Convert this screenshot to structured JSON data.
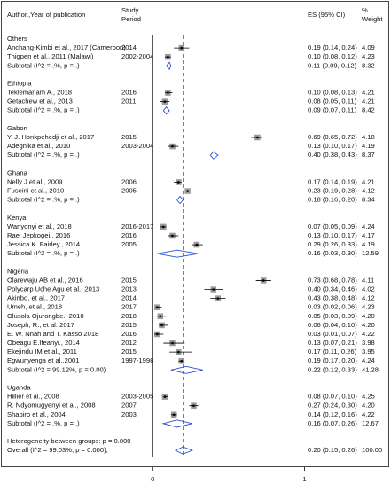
{
  "chart_data": {
    "type": "forest",
    "header": {
      "author": "Author.,Year of publication",
      "period_top": "Study",
      "period_bottom": "Period",
      "es": "ES (95% CI)",
      "weight_top": "%",
      "weight_bottom": "Weight"
    },
    "groups": [
      {
        "name": "Others",
        "studies": [
          {
            "author": "Anchang-Kimbi et al., 2017 (Cameroon)",
            "period": "2014",
            "es": 0.19,
            "lo": 0.14,
            "hi": 0.24,
            "es_label": "0.19 (0.14, 0.24)",
            "weight": 4.09,
            "weight_label": "4.09"
          },
          {
            "author": "Thigpen et al., 2011 (Malawi)",
            "period": "2002-2004",
            "es": 0.1,
            "lo": 0.08,
            "hi": 0.12,
            "es_label": "0.10 (0.08, 0.12)",
            "weight": 4.23,
            "weight_label": "4.23"
          }
        ],
        "subtotal": {
          "label": "Subtotal  (I^2 = .%, p = .)",
          "es": 0.11,
          "lo": 0.09,
          "hi": 0.12,
          "es_label": "0.11 (0.09, 0.12)",
          "weight": 8.32,
          "weight_label": "8.32"
        }
      },
      {
        "name": "Ethiopia",
        "studies": [
          {
            "author": "Teklemariam A., 2018",
            "period": "2016",
            "es": 0.1,
            "lo": 0.08,
            "hi": 0.13,
            "es_label": "0.10 (0.08, 0.13)",
            "weight": 4.21,
            "weight_label": "4.21"
          },
          {
            "author": "Getachew et al., 2013",
            "period": "2011",
            "es": 0.08,
            "lo": 0.05,
            "hi": 0.11,
            "es_label": "0.08 (0.05, 0.11)",
            "weight": 4.21,
            "weight_label": "4.21"
          }
        ],
        "subtotal": {
          "label": "Subtotal  (I^2 = .%, p = .)",
          "es": 0.09,
          "lo": 0.07,
          "hi": 0.11,
          "es_label": "0.09 (0.07, 0.11)",
          "weight": 8.42,
          "weight_label": "8.42"
        }
      },
      {
        "name": "Gabon",
        "studies": [
          {
            "author": "Y. J. Honkpehedji et al., 2017",
            "period": "2015",
            "es": 0.69,
            "lo": 0.65,
            "hi": 0.72,
            "es_label": "0.69 (0.65, 0.72)",
            "weight": 4.18,
            "weight_label": "4.18"
          },
          {
            "author": "Adegnika et al., 2010",
            "period": "2003-2004",
            "es": 0.13,
            "lo": 0.1,
            "hi": 0.17,
            "es_label": "0.13 (0.10, 0.17)",
            "weight": 4.19,
            "weight_label": "4.19"
          }
        ],
        "subtotal": {
          "label": "Subtotal  (I^2 = .%, p = .)",
          "es": 0.4,
          "lo": 0.38,
          "hi": 0.43,
          "es_label": "0.40 (0.38, 0.43)",
          "weight": 8.37,
          "weight_label": "8.37"
        }
      },
      {
        "name": "Ghana",
        "studies": [
          {
            "author": "Nelly J et al., 2009",
            "period": "2006",
            "es": 0.17,
            "lo": 0.14,
            "hi": 0.19,
            "es_label": "0.17 (0.14, 0.19)",
            "weight": 4.21,
            "weight_label": "4.21"
          },
          {
            "author": "Fuseini et al., 2010",
            "period": "2005",
            "es": 0.23,
            "lo": 0.19,
            "hi": 0.28,
            "es_label": "0.23 (0.19, 0.28)",
            "weight": 4.12,
            "weight_label": "4.12"
          }
        ],
        "subtotal": {
          "label": "Subtotal  (I^2 = .%, p = .)",
          "es": 0.18,
          "lo": 0.16,
          "hi": 0.2,
          "es_label": "0.18 (0.16, 0.20)",
          "weight": 8.34,
          "weight_label": "8.34"
        }
      },
      {
        "name": "Kenya",
        "studies": [
          {
            "author": "Wanyonyi  et al., 2018",
            "period": "2016-2017",
            "es": 0.07,
            "lo": 0.05,
            "hi": 0.09,
            "es_label": "0.07 (0.05, 0.09)",
            "weight": 4.24,
            "weight_label": "4.24"
          },
          {
            "author": "Rael Jepkogei., 2016",
            "period": "2016",
            "es": 0.13,
            "lo": 0.1,
            "hi": 0.17,
            "es_label": "0.13 (0.10, 0.17)",
            "weight": 4.17,
            "weight_label": "4.17"
          },
          {
            "author": "Jessica K. Fairley., 2014",
            "period": "2005",
            "es": 0.29,
            "lo": 0.26,
            "hi": 0.33,
            "es_label": "0.29 (0.26, 0.33)",
            "weight": 4.19,
            "weight_label": "4.19"
          }
        ],
        "subtotal": {
          "label": "Subtotal  (I^2 = .%, p = .)",
          "es": 0.16,
          "lo": 0.03,
          "hi": 0.3,
          "es_label": "0.16 (0.03, 0.30)",
          "weight": 12.59,
          "weight_label": "12.59"
        }
      },
      {
        "name": "Nigeria",
        "studies": [
          {
            "author": "Olarewaju AB et al., 2016",
            "period": "2015",
            "es": 0.73,
            "lo": 0.68,
            "hi": 0.78,
            "es_label": "0.73 (0.68, 0.78)",
            "weight": 4.11,
            "weight_label": "4.11"
          },
          {
            "author": "Polycarp Uche Agu et al., 2013",
            "period": "2013",
            "es": 0.4,
            "lo": 0.34,
            "hi": 0.46,
            "es_label": "0.40 (0.34, 0.46)",
            "weight": 4.02,
            "weight_label": "4.02"
          },
          {
            "author": "Akinbo, et al., 2017",
            "period": "2014",
            "es": 0.43,
            "lo": 0.38,
            "hi": 0.48,
            "es_label": "0.43 (0.38, 0.48)",
            "weight": 4.12,
            "weight_label": "4.12"
          },
          {
            "author": "Umeh, et al., 2018",
            "period": "2017",
            "es": 0.03,
            "lo": 0.02,
            "hi": 0.06,
            "es_label": "0.03 (0.02, 0.06)",
            "weight": 4.23,
            "weight_label": "4.23"
          },
          {
            "author": "Olusola Ojurongbe., 2018",
            "period": "2018",
            "es": 0.05,
            "lo": 0.03,
            "hi": 0.09,
            "es_label": "0.05 (0.03, 0.09)",
            "weight": 4.2,
            "weight_label": "4.20"
          },
          {
            "author": "Joseph, R., et al. 2017",
            "period": "2015",
            "es": 0.06,
            "lo": 0.04,
            "hi": 0.1,
            "es_label": "0.06 (0.04, 0.10)",
            "weight": 4.2,
            "weight_label": "4.20"
          },
          {
            "author": "E. W. Nnah and T. Kasso 2018",
            "period": "2016",
            "es": 0.03,
            "lo": 0.01,
            "hi": 0.07,
            "es_label": "0.03 (0.01, 0.07)",
            "weight": 4.22,
            "weight_label": "4.22"
          },
          {
            "author": "Obeagu E.Ifeanyi., 2014",
            "period": "2012",
            "es": 0.13,
            "lo": 0.07,
            "hi": 0.21,
            "es_label": "0.13 (0.07, 0.21)",
            "weight": 3.98,
            "weight_label": "3.98"
          },
          {
            "author": "Ekejindu IM et al., 2011",
            "period": "2015",
            "es": 0.17,
            "lo": 0.11,
            "hi": 0.26,
            "es_label": "0.17 (0.11, 0.26)",
            "weight": 3.95,
            "weight_label": "3.95"
          },
          {
            "author": "Egwunyenga et al.,2001",
            "period": "1997-1998",
            "es": 0.19,
            "lo": 0.17,
            "hi": 0.2,
            "es_label": "0.19 (0.17, 0.20)",
            "weight": 4.24,
            "weight_label": "4.24"
          }
        ],
        "subtotal": {
          "label": "Subtotal  (I^2 = 99.12%, p = 0.00)",
          "es": 0.22,
          "lo": 0.12,
          "hi": 0.33,
          "es_label": "0.22 (0.12, 0.33)",
          "weight": 41.28,
          "weight_label": "41.28"
        }
      },
      {
        "name": "Uganda",
        "studies": [
          {
            "author": "Hillier et al., 2008",
            "period": "2003-2005",
            "es": 0.08,
            "lo": 0.07,
            "hi": 0.1,
            "es_label": "0.08 (0.07, 0.10)",
            "weight": 4.25,
            "weight_label": "4.25"
          },
          {
            "author": "R. Ndyomugyenyi et al., 2008",
            "period": "2007",
            "es": 0.27,
            "lo": 0.24,
            "hi": 0.3,
            "es_label": "0.27 (0.24, 0.30)",
            "weight": 4.2,
            "weight_label": "4.20"
          },
          {
            "author": "Shapiro et al., 2004",
            "period": "2003",
            "es": 0.14,
            "lo": 0.12,
            "hi": 0.16,
            "es_label": "0.14 (0.12, 0.16)",
            "weight": 4.22,
            "weight_label": "4.22"
          }
        ],
        "subtotal": {
          "label": "Subtotal  (I^2 = .%, p = .)",
          "es": 0.16,
          "lo": 0.07,
          "hi": 0.26,
          "es_label": "0.16 (0.07, 0.26)",
          "weight": 12.67,
          "weight_label": "12.67"
        }
      }
    ],
    "heterogeneity": "Heterogeneity between groups: p = 0.000",
    "overall": {
      "label": "Overall  (I^2 = 99.03%, p = 0.000);",
      "es": 0.2,
      "lo": 0.15,
      "hi": 0.26,
      "es_label": "0.20 (0.15, 0.26)",
      "weight": 100.0,
      "weight_label": "100.00"
    },
    "xlim": [
      -0.13,
      1.05
    ],
    "xticks": [
      0,
      1
    ],
    "box_color": "#9a9a9a",
    "diamond_color": "#2a4fd0",
    "overall_line_color": "#d03030"
  }
}
